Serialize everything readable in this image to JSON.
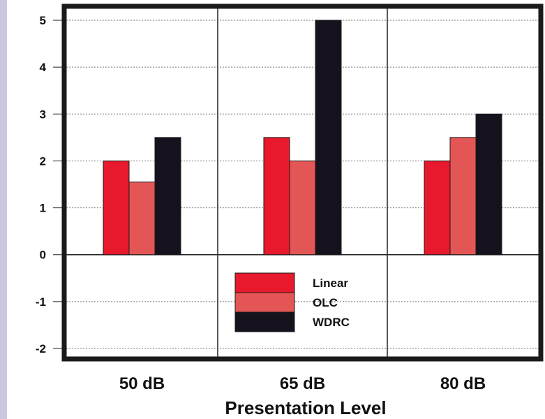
{
  "chart_data": {
    "type": "bar",
    "title": "",
    "xlabel": "Presentation Level",
    "ylabel": "",
    "categories": [
      "50 dB",
      "65 dB",
      "80 dB"
    ],
    "series": [
      {
        "name": "Linear",
        "values": [
          2.0,
          2.5,
          2.0
        ],
        "color": "#e8192c"
      },
      {
        "name": "OLC",
        "values": [
          1.55,
          2.0,
          2.5
        ],
        "color": "#e45555"
      },
      {
        "name": "WDRC",
        "values": [
          2.5,
          5.0,
          3.0
        ],
        "color": "#15121d"
      }
    ],
    "ylim": [
      -2,
      5
    ],
    "yticks": [
      "-2",
      "-1",
      "0",
      "1",
      "2",
      "3",
      "4",
      "5"
    ],
    "grid": true,
    "legend_position": "bottom-center"
  }
}
